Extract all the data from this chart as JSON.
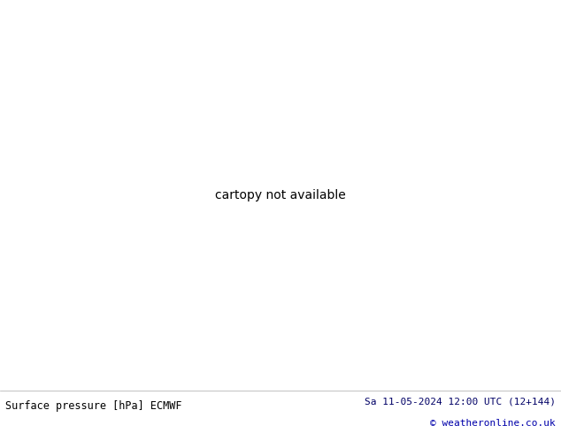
{
  "title_left": "Surface pressure [hPa] ECMWF",
  "title_right": "Sa 11-05-2024 12:00 UTC (12+144)",
  "copyright": "© weatheronline.co.uk",
  "bg_color_land": "#b8eea0",
  "bg_color_sea": "#d8d8d8",
  "border_color_country": "#444444",
  "border_color_coast": "#000000",
  "contour_color_main": "#ff0000",
  "footer_bg": "#ffffff",
  "footer_text_color_left": "#000000",
  "footer_text_color_right": "#000066",
  "copyright_color": "#0000aa",
  "figsize": [
    6.34,
    4.9
  ],
  "dpi": 100,
  "extent": [
    -5.5,
    22.0,
    35.0,
    50.5
  ],
  "isobar_lw": 0.8,
  "coast_lw": 1.3,
  "country_lw": 0.5
}
